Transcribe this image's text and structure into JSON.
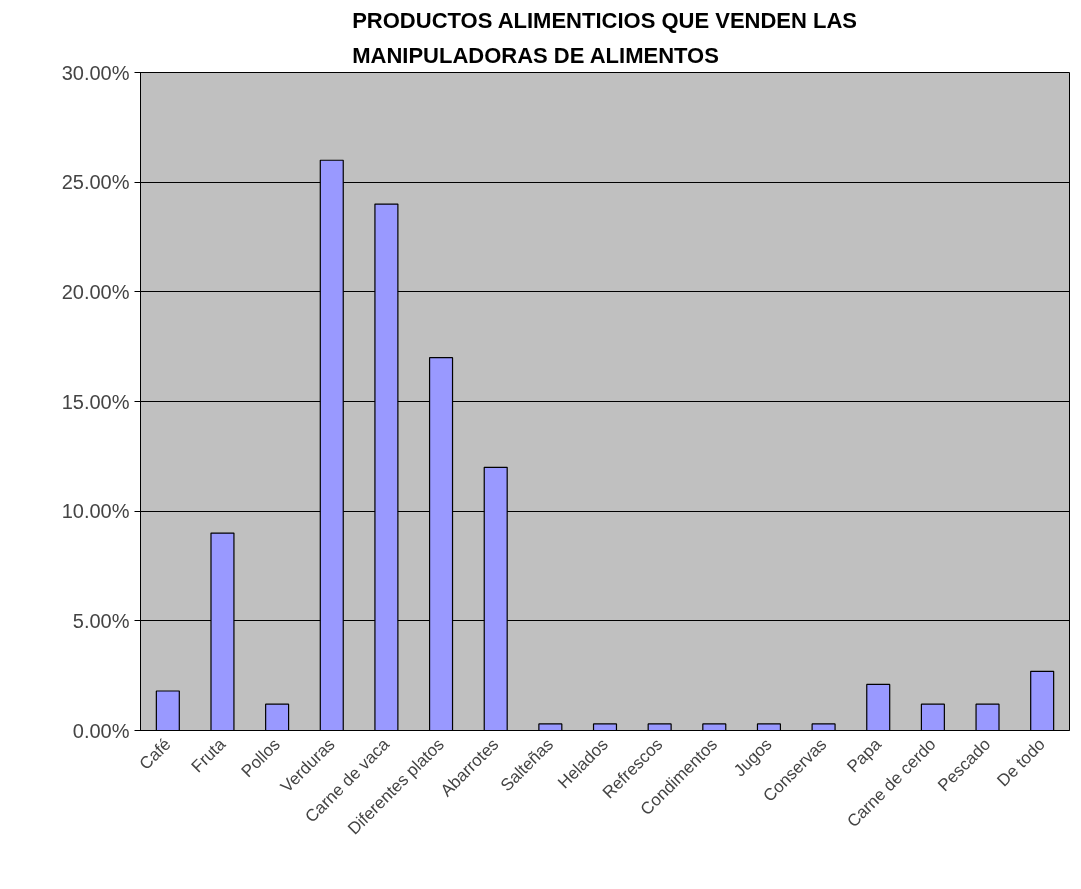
{
  "chart_data": {
    "type": "bar",
    "title": "PRODUCTOS ALIMENTICIOS QUE VENDEN LAS MANIPULADORAS DE ALIMENTOS",
    "categories": [
      "Café",
      "Fruta",
      "Pollos",
      "Verduras",
      "Carne de vaca",
      "Diferentes platos",
      "Abarrotes",
      "Salteñas",
      "Helados",
      "Refrescos",
      "Condimentos",
      "Jugos",
      "Conservas",
      "Papa",
      "Carne de cerdo",
      "Pescado",
      "De todo"
    ],
    "values": [
      1.8,
      9.0,
      1.2,
      26.0,
      24.0,
      17.0,
      12.0,
      0.3,
      0.3,
      0.3,
      0.3,
      0.3,
      0.3,
      2.1,
      1.2,
      1.2,
      2.7
    ],
    "color": "#9999ff",
    "ylim": [
      0,
      30
    ],
    "yticks": [
      {
        "value": 0,
        "label": "0.00%"
      },
      {
        "value": 5,
        "label": "5.00%"
      },
      {
        "value": 10,
        "label": "10.00%"
      },
      {
        "value": 15,
        "label": "15.00%"
      },
      {
        "value": 20,
        "label": "20.00%"
      },
      {
        "value": 25,
        "label": "25.00%"
      },
      {
        "value": 30,
        "label": "30.00%"
      }
    ],
    "grid": "y"
  }
}
